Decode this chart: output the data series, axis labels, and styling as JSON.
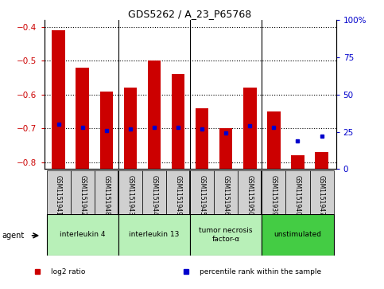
{
  "title": "GDS5262 / A_23_P65768",
  "samples": [
    "GSM1151941",
    "GSM1151942",
    "GSM1151948",
    "GSM1151943",
    "GSM1151944",
    "GSM1151949",
    "GSM1151945",
    "GSM1151946",
    "GSM1151950",
    "GSM1151939",
    "GSM1151940",
    "GSM1151947"
  ],
  "log2_ratio": [
    -0.41,
    -0.52,
    -0.59,
    -0.58,
    -0.5,
    -0.54,
    -0.64,
    -0.7,
    -0.58,
    -0.65,
    -0.78,
    -0.77
  ],
  "percentile": [
    30,
    28,
    26,
    27,
    28,
    28,
    27,
    24,
    29,
    28,
    19,
    22
  ],
  "groups": [
    {
      "label": "interleukin 4",
      "start": 0,
      "end": 2,
      "color": "#b8f0b8"
    },
    {
      "label": "interleukin 13",
      "start": 3,
      "end": 5,
      "color": "#b8f0b8"
    },
    {
      "label": "tumor necrosis\nfactor-α",
      "start": 6,
      "end": 8,
      "color": "#b8f0b8"
    },
    {
      "label": "unstimulated",
      "start": 9,
      "end": 11,
      "color": "#44cc44"
    }
  ],
  "ylim_left": [
    -0.82,
    -0.38
  ],
  "ylim_right": [
    0,
    100
  ],
  "yticks_left": [
    -0.8,
    -0.7,
    -0.6,
    -0.5,
    -0.4
  ],
  "yticks_right": [
    0,
    25,
    50,
    75,
    100
  ],
  "ytick_labels_right": [
    "0",
    "25",
    "50",
    "75",
    "100%"
  ],
  "bar_color": "#cc0000",
  "dot_color": "#0000cc",
  "bar_bottom": -0.82,
  "legend_items": [
    "log2 ratio",
    "percentile rank within the sample"
  ],
  "legend_colors": [
    "#cc0000",
    "#0000cc"
  ],
  "background_color": "#ffffff",
  "grid_color": "#000000",
  "tick_label_color_left": "#cc0000",
  "tick_label_color_right": "#0000cc",
  "group_dividers": [
    2.5,
    5.5,
    8.5
  ],
  "sample_box_color": "#d0d0d0",
  "n_samples": 12
}
